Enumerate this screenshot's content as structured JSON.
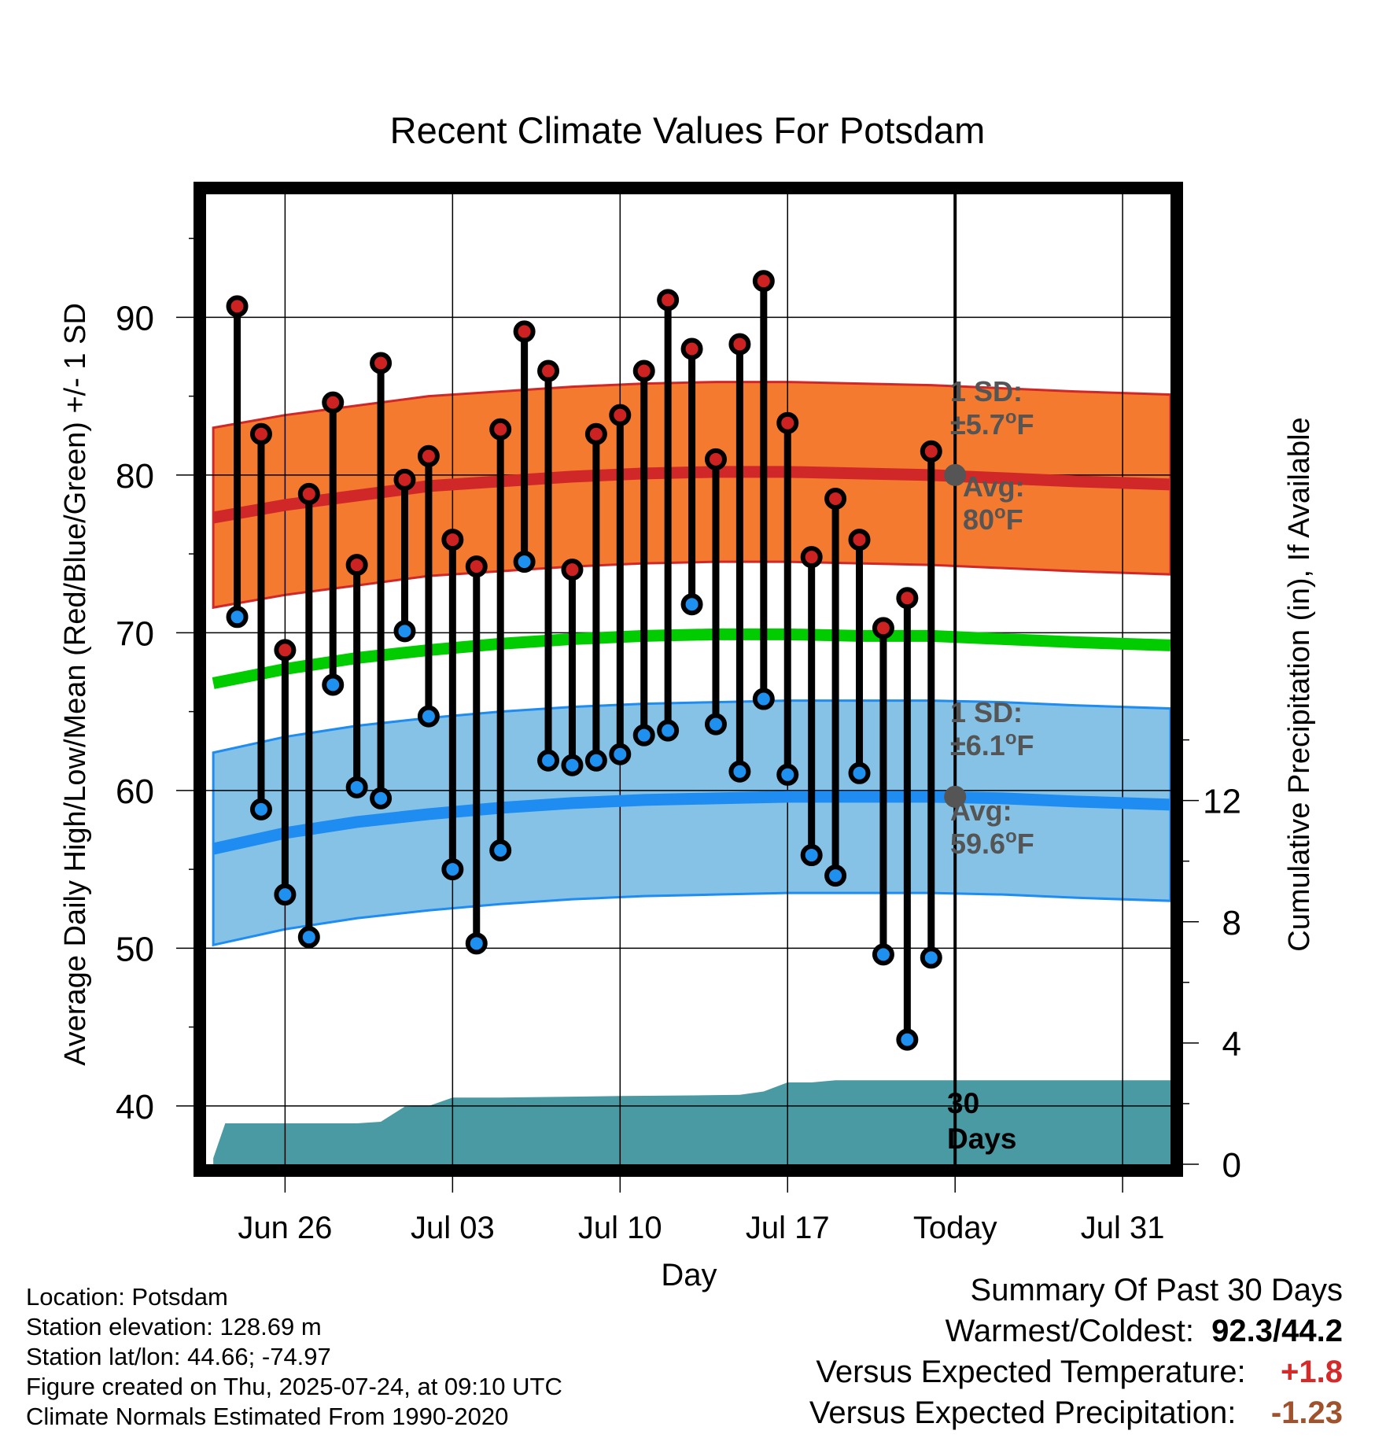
{
  "chart_data": {
    "type": "line",
    "title": "Recent Climate Values For Potsdam",
    "xlabel": "Day",
    "ylabel": "Average Daily High/Low/Mean (Red/Blue/Green) +/- 1 SD",
    "y2label": "Cumulative Precipitation (in), If Available",
    "ylim": [
      36.3,
      97.8
    ],
    "y2lim": [
      0,
      32
    ],
    "yticks": [
      40,
      50,
      60,
      70,
      80,
      90
    ],
    "y2ticks": [
      0,
      4,
      8,
      12
    ],
    "x_tick_labels": [
      {
        "label": "Jun 26",
        "day": 3
      },
      {
        "label": "Jul 03",
        "day": 10
      },
      {
        "label": "Jul 10",
        "day": 17
      },
      {
        "label": "Jul 17",
        "day": 24
      },
      {
        "label": "Today",
        "day": 31
      },
      {
        "label": "Jul 31",
        "day": 38
      }
    ],
    "xlim": [
      -0.3,
      40.0
    ],
    "grid": true,
    "today_day": 31,
    "daily_high": [
      90.7,
      82.6,
      68.9,
      78.8,
      84.6,
      74.3,
      87.1,
      79.7,
      81.2,
      75.9,
      74.2,
      82.9,
      89.1,
      86.6,
      74.0,
      82.6,
      83.8,
      86.6,
      91.1,
      88.0,
      81.0,
      88.3,
      92.3,
      83.3,
      74.8,
      78.5,
      75.9,
      70.3,
      72.2,
      81.5
    ],
    "daily_low": [
      71.0,
      58.8,
      53.4,
      50.7,
      66.7,
      60.2,
      59.5,
      70.1,
      64.7,
      55.0,
      50.3,
      56.2,
      74.5,
      61.9,
      61.6,
      61.9,
      62.3,
      63.5,
      63.8,
      71.8,
      64.2,
      61.2,
      65.8,
      61.0,
      55.9,
      54.6,
      61.1,
      49.6,
      44.2,
      49.4
    ],
    "normal_high_days": [
      0,
      3,
      6,
      9,
      12,
      15,
      18,
      21,
      24,
      27,
      30,
      33,
      36,
      40
    ],
    "normal_high": [
      77.3,
      78.1,
      78.7,
      79.3,
      79.6,
      79.9,
      80.1,
      80.2,
      80.2,
      80.1,
      80.0,
      79.8,
      79.6,
      79.4
    ],
    "normal_high_sd": 5.7,
    "normal_low": [
      56.3,
      57.3,
      58.0,
      58.5,
      58.9,
      59.2,
      59.4,
      59.5,
      59.6,
      59.6,
      59.6,
      59.5,
      59.3,
      59.1
    ],
    "normal_low_sd": 6.1,
    "normal_mean": [
      66.8,
      67.7,
      68.4,
      68.9,
      69.3,
      69.6,
      69.8,
      69.9,
      69.9,
      69.8,
      69.8,
      69.6,
      69.4,
      69.2
    ],
    "precip_days": [
      0,
      0.5,
      3,
      6,
      7,
      8,
      9,
      10,
      12,
      14,
      17,
      20,
      22,
      23,
      24,
      25,
      26,
      27,
      28,
      31,
      40
    ],
    "cumulative_precip": [
      0.2,
      1.35,
      1.35,
      1.35,
      1.4,
      1.9,
      1.92,
      2.2,
      2.2,
      2.22,
      2.25,
      2.27,
      2.29,
      2.4,
      2.7,
      2.7,
      2.77,
      2.77,
      2.77,
      2.77,
      2.77
    ],
    "annotations": {
      "high_sd_label": "1 SD:",
      "high_sd_value": "±5.7",
      "high_avg_label": "Avg:",
      "high_avg_value": "80",
      "low_sd_label": "1 SD:",
      "low_sd_value": "±6.1",
      "low_avg_label": "Avg:",
      "low_avg_value": "59.6",
      "degree_mark": "o",
      "unit": "F",
      "precip_days_line1": "30",
      "precip_days_line2": "Days"
    },
    "colors": {
      "high_band": "#f47a30",
      "high_line": "#d02828",
      "low_band": "#85c2e6",
      "low_line": "#1e8cf0",
      "mean_line": "#00cc00",
      "precip_fill": "#4a9aa3",
      "high_dot": "#cc2222",
      "low_dot": "#1e90f0",
      "today_marker": "#555555"
    }
  },
  "metadata": {
    "location": "Location: Potsdam",
    "elevation": "Station elevation: 128.69 m",
    "latlon": "Station lat/lon: 44.66; -74.97",
    "created": "Figure created on Thu, 2025-07-24, at 09:10 UTC",
    "normals": "Climate Normals Estimated From 1990-2020"
  },
  "summary": {
    "title": "Summary Of Past 30 Days",
    "warmest_coldest_label": "Warmest/Coldest:",
    "warmest_coldest_value": "92.3/44.2",
    "temp_label": "Versus Expected Temperature:",
    "temp_value": "+1.8",
    "temp_color": "#d42a2a",
    "precip_label": "Versus Expected Precipitation:",
    "precip_value": "-1.23",
    "precip_color": "#a0522d"
  }
}
